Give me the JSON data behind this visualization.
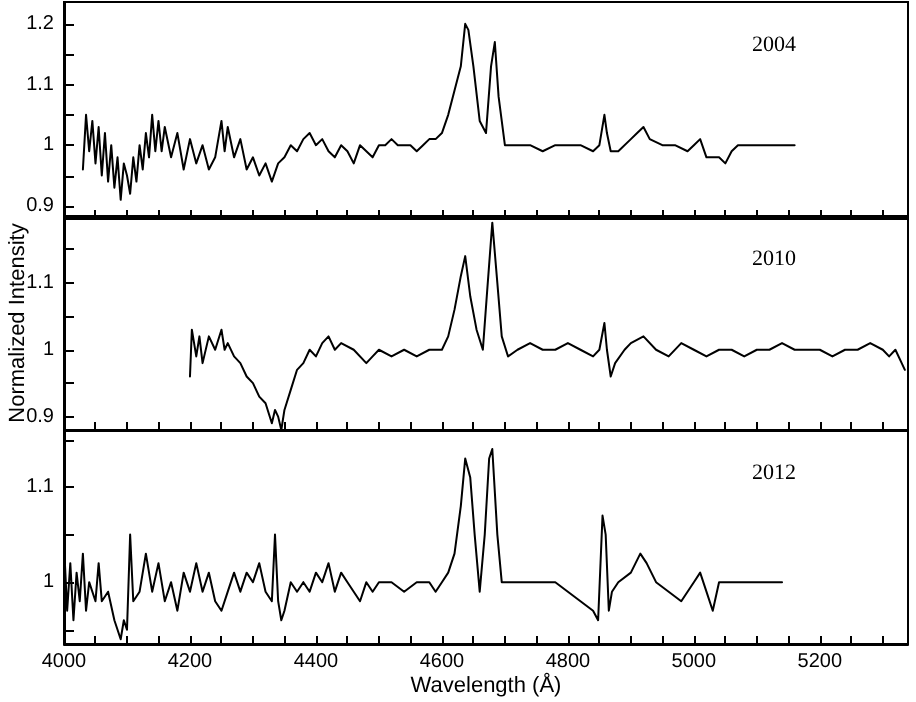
{
  "chart_data": [
    {
      "type": "line",
      "tick_labels": "y",
      "marker": "none",
      "line_style": "solid",
      "grid": false,
      "annotations": [
        "2004"
      ],
      "xlim": [
        4000,
        5340
      ],
      "ylim": [
        0.88,
        1.236
      ],
      "xticks": [
        4000,
        {
          "value": 4050,
          "label": null
        },
        {
          "value": 4100,
          "label": null
        },
        {
          "value": 4150,
          "label": null
        },
        4200,
        {
          "value": 4250,
          "label": null
        },
        {
          "value": 4300,
          "label": null
        },
        {
          "value": 4350,
          "label": null
        },
        4400,
        {
          "value": 4450,
          "label": null
        },
        {
          "value": 4500,
          "label": null
        },
        {
          "value": 4550,
          "label": null
        },
        4600,
        {
          "value": 4650,
          "label": null
        },
        {
          "value": 4700,
          "label": null
        },
        {
          "value": 4750,
          "label": null
        },
        4800,
        {
          "value": 4850,
          "label": null
        },
        {
          "value": 4900,
          "label": null
        },
        {
          "value": 4950,
          "label": null
        },
        5000,
        {
          "value": 5050,
          "label": null
        },
        {
          "value": 5100,
          "label": null
        },
        {
          "value": 5150,
          "label": null
        },
        5200,
        {
          "value": 5250,
          "label": null
        },
        {
          "value": 5300,
          "label": null
        }
      ],
      "yticks": [
        0.9,
        {
          "value": 0.95,
          "label": null
        },
        1,
        {
          "value": 1.05,
          "label": null
        },
        1.1,
        {
          "value": 1.15,
          "label": null
        },
        1.2
      ],
      "series": [
        {
          "color": "#000000",
          "x": [
            4030,
            4035,
            4040,
            4045,
            4050,
            4055,
            4060,
            4065,
            4070,
            4075,
            4080,
            4085,
            4090,
            4095,
            4100,
            4105,
            4110,
            4115,
            4120,
            4125,
            4130,
            4135,
            4140,
            4145,
            4150,
            4155,
            4160,
            4170,
            4180,
            4190,
            4200,
            4210,
            4220,
            4230,
            4240,
            4250,
            4255,
            4260,
            4270,
            4280,
            4290,
            4300,
            4310,
            4320,
            4330,
            4340,
            4350,
            4360,
            4370,
            4380,
            4390,
            4400,
            4410,
            4420,
            4430,
            4440,
            4450,
            4460,
            4470,
            4480,
            4490,
            4500,
            4510,
            4520,
            4530,
            4540,
            4550,
            4560,
            4570,
            4580,
            4590,
            4600,
            4610,
            4620,
            4630,
            4637,
            4642,
            4650,
            4660,
            4670,
            4678,
            4684,
            4690,
            4700,
            4720,
            4740,
            4760,
            4780,
            4800,
            4820,
            4840,
            4850,
            4858,
            4862,
            4868,
            4880,
            4900,
            4910,
            4920,
            4930,
            4950,
            4970,
            4990,
            5000,
            5010,
            5020,
            5040,
            5050,
            5060,
            5070,
            5080,
            5100,
            5120,
            5140,
            5160
          ],
          "values": [
            0.96,
            1.05,
            0.99,
            1.04,
            0.97,
            1.03,
            0.95,
            1.02,
            0.94,
            1.0,
            0.93,
            0.98,
            0.91,
            0.97,
            0.95,
            0.92,
            0.98,
            0.94,
            1.0,
            0.96,
            1.02,
            0.98,
            1.05,
            0.99,
            1.04,
            0.99,
            1.03,
            0.98,
            1.02,
            0.96,
            1.01,
            0.97,
            1.0,
            0.96,
            0.98,
            1.04,
            0.99,
            1.03,
            0.98,
            1.01,
            0.96,
            0.98,
            0.95,
            0.97,
            0.94,
            0.97,
            0.98,
            1.0,
            0.99,
            1.01,
            1.02,
            1.0,
            1.01,
            0.99,
            0.98,
            1.0,
            0.99,
            0.97,
            1.0,
            0.99,
            0.98,
            1.0,
            1.0,
            1.01,
            1.0,
            1.0,
            1.0,
            0.99,
            1.0,
            1.01,
            1.01,
            1.02,
            1.05,
            1.09,
            1.13,
            1.2,
            1.19,
            1.13,
            1.04,
            1.02,
            1.13,
            1.17,
            1.08,
            1.0,
            1.0,
            1.0,
            0.99,
            1.0,
            1.0,
            1.0,
            0.99,
            1.0,
            1.05,
            1.02,
            0.99,
            0.99,
            1.01,
            1.02,
            1.03,
            1.01,
            1.0,
            1.0,
            0.99,
            1.0,
            1.01,
            0.98,
            0.98,
            0.97,
            0.99,
            1.0,
            1.0,
            1.0,
            1.0,
            1.0,
            1.0
          ]
        }
      ]
    },
    {
      "type": "line",
      "tick_labels": "y",
      "marker": "none",
      "line_style": "solid",
      "grid": false,
      "annotations": [
        "2010"
      ],
      "ylabel": "Normalized Intensity",
      "xlim": [
        4000,
        5340
      ],
      "ylim": [
        0.88,
        1.2
      ],
      "xticks": [
        4000,
        {
          "value": 4050,
          "label": null
        },
        {
          "value": 4100,
          "label": null
        },
        {
          "value": 4150,
          "label": null
        },
        4200,
        {
          "value": 4250,
          "label": null
        },
        {
          "value": 4300,
          "label": null
        },
        {
          "value": 4350,
          "label": null
        },
        4400,
        {
          "value": 4450,
          "label": null
        },
        {
          "value": 4500,
          "label": null
        },
        {
          "value": 4550,
          "label": null
        },
        4600,
        {
          "value": 4650,
          "label": null
        },
        {
          "value": 4700,
          "label": null
        },
        {
          "value": 4750,
          "label": null
        },
        4800,
        {
          "value": 4850,
          "label": null
        },
        {
          "value": 4900,
          "label": null
        },
        {
          "value": 4950,
          "label": null
        },
        5000,
        {
          "value": 5050,
          "label": null
        },
        {
          "value": 5100,
          "label": null
        },
        {
          "value": 5150,
          "label": null
        },
        5200,
        {
          "value": 5250,
          "label": null
        },
        {
          "value": 5300,
          "label": null
        }
      ],
      "yticks": [
        0.9,
        {
          "value": 0.95,
          "label": null
        },
        1,
        {
          "value": 1.05,
          "label": null
        },
        1.1,
        {
          "value": 1.15,
          "label": null
        }
      ],
      "series": [
        {
          "color": "#000000",
          "x": [
            4200,
            4203,
            4210,
            4215,
            4220,
            4230,
            4240,
            4250,
            4255,
            4260,
            4270,
            4280,
            4290,
            4300,
            4310,
            4320,
            4330,
            4335,
            4340,
            4345,
            4350,
            4360,
            4370,
            4380,
            4390,
            4400,
            4410,
            4420,
            4430,
            4440,
            4460,
            4480,
            4490,
            4500,
            4520,
            4540,
            4560,
            4580,
            4600,
            4610,
            4620,
            4630,
            4637,
            4645,
            4655,
            4665,
            4672,
            4680,
            4688,
            4695,
            4705,
            4720,
            4740,
            4760,
            4780,
            4800,
            4820,
            4840,
            4850,
            4858,
            4862,
            4868,
            4875,
            4890,
            4900,
            4920,
            4940,
            4960,
            4980,
            5000,
            5020,
            5040,
            5060,
            5080,
            5100,
            5120,
            5140,
            5160,
            5180,
            5200,
            5220,
            5240,
            5260,
            5280,
            5300,
            5310,
            5320,
            5330,
            5335
          ],
          "values": [
            0.96,
            1.03,
            0.99,
            1.02,
            0.98,
            1.02,
            1.0,
            1.03,
            1.0,
            1.01,
            0.99,
            0.98,
            0.96,
            0.95,
            0.93,
            0.92,
            0.89,
            0.91,
            0.9,
            0.88,
            0.91,
            0.94,
            0.97,
            0.98,
            1.0,
            0.99,
            1.01,
            1.02,
            1.0,
            1.01,
            1.0,
            0.98,
            0.99,
            1.0,
            0.99,
            1.0,
            0.99,
            1.0,
            1.0,
            1.02,
            1.06,
            1.11,
            1.14,
            1.08,
            1.03,
            1.0,
            1.09,
            1.19,
            1.1,
            1.02,
            0.99,
            1.0,
            1.01,
            1.0,
            1.0,
            1.01,
            1.0,
            0.99,
            1.0,
            1.04,
            1.0,
            0.96,
            0.98,
            1.0,
            1.01,
            1.02,
            1.0,
            0.99,
            1.01,
            1.0,
            0.99,
            1.0,
            1.0,
            0.99,
            1.0,
            1.0,
            1.01,
            1.0,
            1.0,
            1.0,
            0.99,
            1.0,
            1.0,
            1.01,
            1.0,
            0.99,
            1.0,
            0.98,
            0.97
          ]
        }
      ]
    },
    {
      "type": "line",
      "marker": "none",
      "line_style": "solid",
      "grid": false,
      "annotations": [
        "2012"
      ],
      "xlabel": "Wavelength (Å)",
      "xlim": [
        4000,
        5340
      ],
      "ylim": [
        0.935,
        1.16
      ],
      "xticks": [
        4000,
        {
          "value": 4050,
          "label": null
        },
        {
          "value": 4100,
          "label": null
        },
        {
          "value": 4150,
          "label": null
        },
        4200,
        {
          "value": 4250,
          "label": null
        },
        {
          "value": 4300,
          "label": null
        },
        {
          "value": 4350,
          "label": null
        },
        4400,
        {
          "value": 4450,
          "label": null
        },
        {
          "value": 4500,
          "label": null
        },
        {
          "value": 4550,
          "label": null
        },
        4600,
        {
          "value": 4650,
          "label": null
        },
        {
          "value": 4700,
          "label": null
        },
        {
          "value": 4750,
          "label": null
        },
        4800,
        {
          "value": 4850,
          "label": null
        },
        {
          "value": 4900,
          "label": null
        },
        {
          "value": 4950,
          "label": null
        },
        5000,
        {
          "value": 5050,
          "label": null
        },
        {
          "value": 5100,
          "label": null
        },
        {
          "value": 5150,
          "label": null
        },
        5200,
        {
          "value": 5250,
          "label": null
        },
        {
          "value": 5300,
          "label": null
        }
      ],
      "yticks": [
        {
          "value": 0.95,
          "label": null
        },
        1,
        {
          "value": 1.05,
          "label": null
        },
        1.1,
        {
          "value": 1.15,
          "label": null
        }
      ],
      "series": [
        {
          "color": "#000000",
          "x": [
            4000,
            4005,
            4010,
            4015,
            4020,
            4025,
            4030,
            4035,
            4040,
            4050,
            4055,
            4060,
            4070,
            4080,
            4090,
            4095,
            4100,
            4105,
            4110,
            4120,
            4130,
            4140,
            4150,
            4160,
            4170,
            4180,
            4190,
            4200,
            4210,
            4220,
            4230,
            4240,
            4250,
            4260,
            4270,
            4280,
            4290,
            4300,
            4310,
            4320,
            4330,
            4335,
            4340,
            4345,
            4350,
            4360,
            4370,
            4380,
            4390,
            4400,
            4410,
            4420,
            4430,
            4440,
            4450,
            4460,
            4470,
            4480,
            4490,
            4500,
            4520,
            4540,
            4560,
            4580,
            4590,
            4600,
            4610,
            4620,
            4630,
            4637,
            4645,
            4652,
            4660,
            4668,
            4675,
            4680,
            4688,
            4695,
            4700,
            4720,
            4740,
            4760,
            4780,
            4800,
            4820,
            4840,
            4848,
            4855,
            4860,
            4865,
            4870,
            4880,
            4900,
            4915,
            4925,
            4940,
            4960,
            4980,
            5000,
            5010,
            5020,
            5030,
            5040,
            5060,
            5080,
            5100,
            5120,
            5140
          ],
          "values": [
            1.04,
            0.97,
            1.02,
            0.96,
            1.01,
            0.98,
            1.03,
            0.97,
            1.0,
            0.98,
            1.02,
            0.98,
            0.99,
            0.96,
            0.94,
            0.96,
            0.95,
            1.05,
            0.98,
            0.99,
            1.03,
            0.99,
            1.02,
            0.98,
            1.0,
            0.97,
            1.01,
            0.99,
            1.02,
            0.99,
            1.01,
            0.98,
            0.97,
            0.99,
            1.01,
            0.99,
            1.01,
            1.0,
            1.02,
            0.99,
            0.98,
            1.05,
            0.98,
            0.96,
            0.97,
            1.0,
            0.99,
            1.0,
            0.99,
            1.01,
            1.0,
            1.02,
            0.99,
            1.01,
            1.0,
            0.99,
            0.98,
            1.0,
            0.99,
            1.0,
            1.0,
            0.99,
            1.0,
            1.0,
            0.99,
            1.0,
            1.01,
            1.03,
            1.08,
            1.13,
            1.11,
            1.05,
            0.99,
            1.05,
            1.13,
            1.14,
            1.05,
            1.0,
            1.0,
            1.0,
            1.0,
            1.0,
            1.0,
            0.99,
            0.98,
            0.97,
            0.96,
            1.07,
            1.05,
            0.97,
            0.99,
            1.0,
            1.01,
            1.03,
            1.02,
            1.0,
            0.99,
            0.98,
            1.0,
            1.01,
            0.99,
            0.97,
            1.0,
            1.0,
            1.0,
            1.0,
            1.0,
            1.0
          ]
        }
      ]
    }
  ]
}
